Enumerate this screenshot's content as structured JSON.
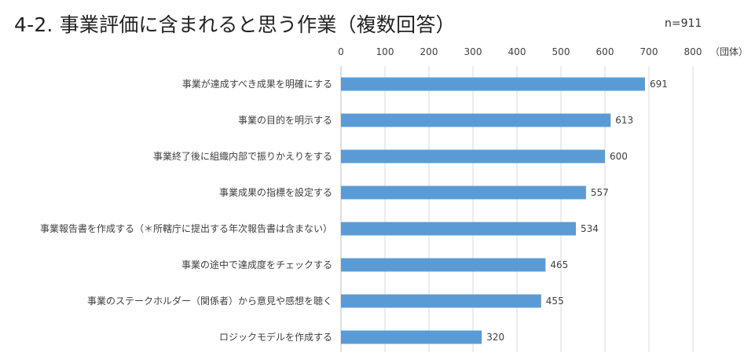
{
  "header": {
    "title": "4-2. 事業評価に含まれると思う作業（複数回答）",
    "sample_size": "n=911"
  },
  "chart_data": {
    "type": "bar",
    "orientation": "horizontal",
    "categories": [
      "事業が達成すべき成果を明確にする",
      "事業の目的を明示する",
      "事業終了後に組織内部で振りかえりをする",
      "事業成果の指標を設定する",
      "事業報告書を作成する（＊所轄庁に提出する年次報告書は含まない）",
      "事業の途中で達成度をチェックする",
      "事業のステークホルダー（関係者）から意見や感想を聴く",
      "ロジックモデルを作成する"
    ],
    "values": [
      691,
      613,
      600,
      557,
      534,
      465,
      455,
      320
    ],
    "data_labels": [
      "691",
      "613",
      "600",
      "557",
      "534",
      "465",
      "455",
      "320"
    ],
    "x_ticks": [
      0,
      100,
      200,
      300,
      400,
      500,
      600,
      700,
      800
    ],
    "x_tick_labels": [
      "0",
      "100",
      "200",
      "300",
      "400",
      "500",
      "600",
      "700",
      "800"
    ],
    "xlim": [
      0,
      800
    ],
    "unit_label": "（団体）",
    "axis_position": "top",
    "grid": true,
    "legend": "none",
    "bar_color": "#5b9bd5",
    "grid_color": "#d9d9d9"
  }
}
